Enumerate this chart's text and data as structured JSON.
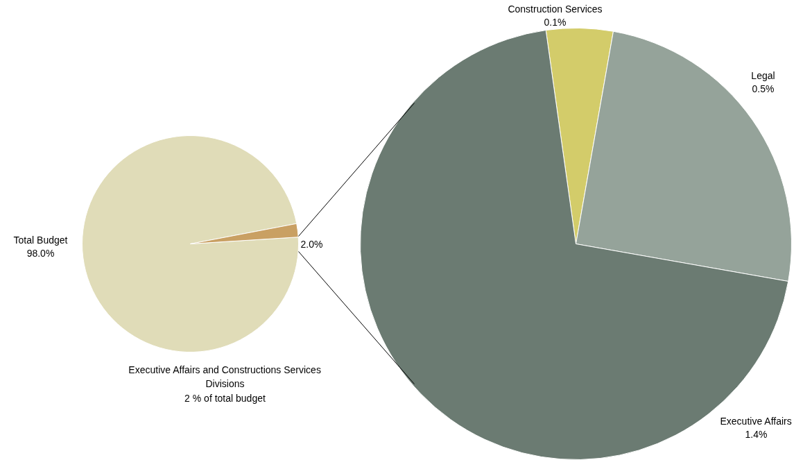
{
  "chart_data": [
    {
      "type": "pie",
      "categories": [
        "Total Budget",
        null
      ],
      "values": [
        98.0,
        2.0
      ],
      "value_labels": [
        "98.0%",
        "2.0%"
      ],
      "colors": [
        "#e0dcb8",
        "#c9a063"
      ],
      "annotations": [
        "Executive Affairs and Constructions Services\nDivisions\n2 % of total budget"
      ]
    },
    {
      "type": "pie",
      "categories": [
        "Construction Services",
        "Legal",
        "Executive Affairs"
      ],
      "values": [
        0.1,
        0.5,
        1.4
      ],
      "value_labels": [
        "0.1%",
        "0.5%",
        "1.4%"
      ],
      "colors": [
        "#d3cc6a",
        "#95a39a",
        "#6b7b72"
      ]
    }
  ]
}
